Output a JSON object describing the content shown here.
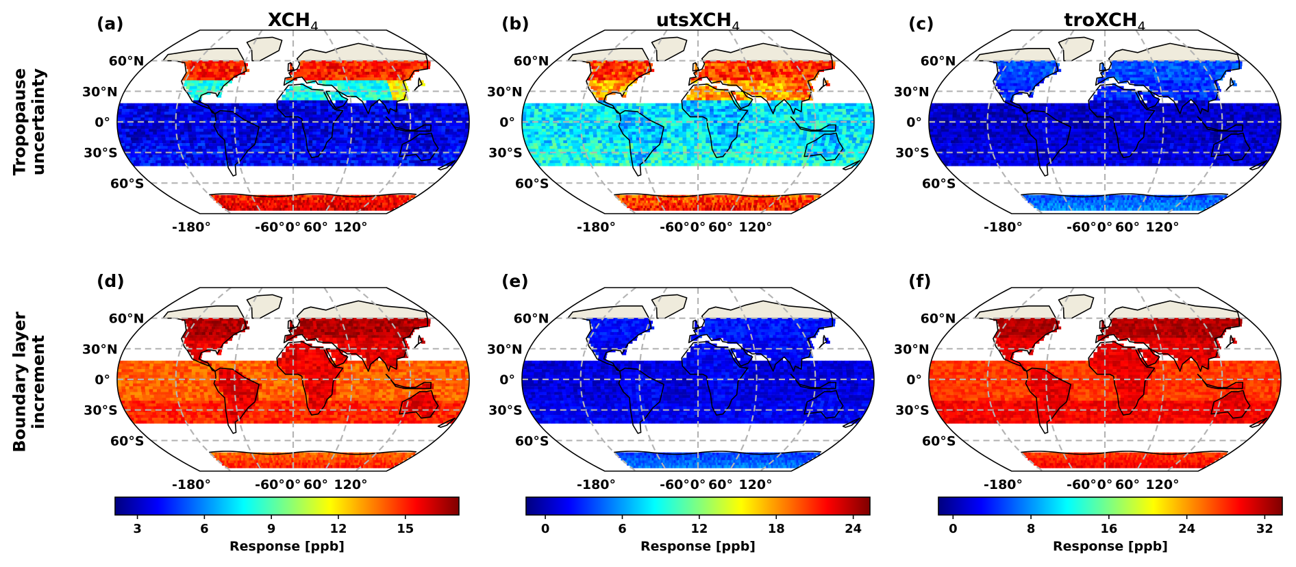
{
  "row_labels": [
    [
      "Tropopause",
      "uncertainty"
    ],
    [
      "Boundary layer",
      "increment"
    ]
  ],
  "column_titles": [
    {
      "base": "XCH",
      "sub": "4"
    },
    {
      "base": "utsXCH",
      "sub": "4"
    },
    {
      "base": "troXCH",
      "sub": "4"
    }
  ],
  "lat_labels": [
    "60°N",
    "30°N",
    "0°",
    "30°S",
    "60°S"
  ],
  "lon_labels": [
    "-180°",
    "-60°",
    "0°",
    "60°",
    "120°"
  ],
  "panels": [
    {
      "tag": "(a)",
      "row": 0,
      "col": 0
    },
    {
      "tag": "(b)",
      "row": 0,
      "col": 1
    },
    {
      "tag": "(c)",
      "row": 0,
      "col": 2
    },
    {
      "tag": "(d)",
      "row": 1,
      "col": 0
    },
    {
      "tag": "(e)",
      "row": 1,
      "col": 1
    },
    {
      "tag": "(f)",
      "row": 1,
      "col": 2
    }
  ],
  "colorbars": [
    {
      "ticks": [
        "3",
        "6",
        "9",
        "12",
        "15"
      ],
      "min": 2,
      "max": 17.4,
      "tick_values": [
        3,
        6,
        9,
        12,
        15
      ],
      "label": "Response [ppb]"
    },
    {
      "ticks": [
        "0",
        "6",
        "12",
        "18",
        "24"
      ],
      "min": -1.5,
      "max": 25.3,
      "tick_values": [
        0,
        6,
        12,
        18,
        24
      ],
      "label": "Response [ppb]"
    },
    {
      "ticks": [
        "0",
        "8",
        "16",
        "24",
        "32"
      ],
      "min": -1.5,
      "max": 33.8,
      "tick_values": [
        0,
        8,
        16,
        24,
        32
      ],
      "label": "Response [ppb]"
    }
  ],
  "colormap": [
    "#00007f",
    "#0000ff",
    "#0080ff",
    "#00ffff",
    "#80ff80",
    "#ffff00",
    "#ff8000",
    "#ff0000",
    "#7f0000"
  ],
  "colors": {
    "land_no_data": "#efebdc",
    "gridlines": "#b4b4b4",
    "coastlines": "#000000"
  },
  "map_fields": [
    {
      "ocean_band": 0.1,
      "land_north": 0.4,
      "land_north_high": 0.85,
      "land_tropics": 0.1,
      "antarctica": 0.85,
      "speckle": 0.08
    },
    {
      "ocean_band": 0.36,
      "land_north": 0.72,
      "land_north_high": 0.82,
      "land_tropics": 0.32,
      "antarctica": 0.8,
      "speckle": 0.1
    },
    {
      "ocean_band": 0.07,
      "land_north": 0.16,
      "land_north_high": 0.2,
      "land_tropics": 0.09,
      "antarctica": 0.2,
      "speckle": 0.06
    },
    {
      "ocean_band": 0.78,
      "land_north": 0.9,
      "land_north_high": 0.95,
      "land_tropics": 0.9,
      "antarctica": 0.78,
      "speckle": 0.05
    },
    {
      "ocean_band": 0.09,
      "land_north": 0.12,
      "land_north_high": 0.14,
      "land_tropics": 0.12,
      "antarctica": 0.18,
      "speckle": 0.05
    },
    {
      "ocean_band": 0.82,
      "land_north": 0.9,
      "land_north_high": 0.95,
      "land_tropics": 0.9,
      "antarctica": 0.82,
      "speckle": 0.04
    }
  ]
}
